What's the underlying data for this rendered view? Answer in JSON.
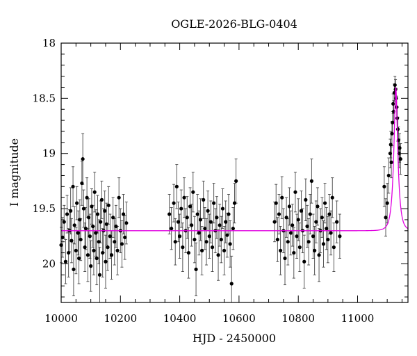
{
  "chart_data": {
    "type": "scatter",
    "title": "OGLE-2026-BLG-0404",
    "xlabel": "HJD - 2450000",
    "ylabel": "I magnitude",
    "xlim": [
      10000,
      11170
    ],
    "ylim": [
      20.35,
      18.0
    ],
    "y_inverted": true,
    "grid": false,
    "legend": "none",
    "x_ticks": [
      10000,
      10200,
      10400,
      10600,
      10800,
      11000
    ],
    "x_tick_labels": [
      "10000",
      "10200",
      "10400",
      "10600",
      "10800",
      "11000"
    ],
    "y_ticks": [
      18,
      18.5,
      19,
      19.5,
      20
    ],
    "y_tick_labels": [
      "18",
      "18.5",
      "19",
      "19.5",
      "20"
    ],
    "colors": {
      "points": "#000000",
      "model": "#e000e0"
    },
    "series": [
      {
        "kind": "points_with_errorbars",
        "points": [
          [
            10000,
            19.83,
            0.16
          ],
          [
            10005,
            19.76,
            0.18
          ],
          [
            10010,
            19.62,
            0.15
          ],
          [
            10015,
            19.98,
            0.2
          ],
          [
            10020,
            19.55,
            0.17
          ],
          [
            10025,
            19.9,
            0.22
          ],
          [
            10028,
            19.7,
            0.19
          ],
          [
            10032,
            19.52,
            0.21
          ],
          [
            10035,
            19.79,
            0.2
          ],
          [
            10040,
            19.3,
            0.18
          ],
          [
            10042,
            20.05,
            0.24
          ],
          [
            10045,
            19.65,
            0.17
          ],
          [
            10050,
            19.88,
            0.21
          ],
          [
            10053,
            19.45,
            0.15
          ],
          [
            10057,
            19.72,
            0.2
          ],
          [
            10060,
            19.95,
            0.23
          ],
          [
            10063,
            19.6,
            0.18
          ],
          [
            10066,
            19.78,
            0.19
          ],
          [
            10070,
            19.27,
            0.2
          ],
          [
            10073,
            19.05,
            0.23
          ],
          [
            10076,
            19.5,
            0.17
          ],
          [
            10080,
            19.85,
            0.22
          ],
          [
            10083,
            19.68,
            0.19
          ],
          [
            10087,
            19.4,
            0.18
          ],
          [
            10090,
            19.92,
            0.24
          ],
          [
            10093,
            19.58,
            0.17
          ],
          [
            10097,
            19.75,
            0.2
          ],
          [
            10100,
            20.02,
            0.23
          ],
          [
            10103,
            19.48,
            0.16
          ],
          [
            10107,
            19.66,
            0.19
          ],
          [
            10110,
            19.88,
            0.22
          ],
          [
            10113,
            19.35,
            0.18
          ],
          [
            10117,
            19.72,
            0.21
          ],
          [
            10120,
            19.95,
            0.24
          ],
          [
            10123,
            19.55,
            0.17
          ],
          [
            10127,
            19.8,
            0.2
          ],
          [
            10130,
            20.1,
            0.25
          ],
          [
            10133,
            19.62,
            0.19
          ],
          [
            10137,
            19.42,
            0.17
          ],
          [
            10140,
            19.9,
            0.22
          ],
          [
            10143,
            19.7,
            0.2
          ],
          [
            10147,
            19.52,
            0.18
          ],
          [
            10150,
            19.98,
            0.24
          ],
          [
            10153,
            19.64,
            0.19
          ],
          [
            10157,
            19.85,
            0.21
          ],
          [
            10160,
            19.47,
            0.17
          ],
          [
            10165,
            19.75,
            0.2
          ],
          [
            10170,
            19.92,
            0.22
          ],
          [
            10175,
            19.58,
            0.18
          ],
          [
            10180,
            19.8,
            0.21
          ],
          [
            10185,
            19.66,
            0.19
          ],
          [
            10190,
            19.88,
            0.22
          ],
          [
            10195,
            19.4,
            0.18
          ],
          [
            10200,
            19.7,
            0.2
          ],
          [
            10205,
            19.82,
            0.21
          ],
          [
            10210,
            19.55,
            0.18
          ],
          [
            10215,
            19.76,
            0.2
          ],
          [
            10220,
            19.63,
            0.19
          ],
          [
            10365,
            19.55,
            0.18
          ],
          [
            10372,
            19.68,
            0.19
          ],
          [
            10380,
            19.45,
            0.17
          ],
          [
            10385,
            19.8,
            0.21
          ],
          [
            10390,
            19.3,
            0.2
          ],
          [
            10395,
            19.62,
            0.18
          ],
          [
            10400,
            19.75,
            0.2
          ],
          [
            10405,
            19.5,
            0.17
          ],
          [
            10410,
            19.85,
            0.22
          ],
          [
            10415,
            19.4,
            0.18
          ],
          [
            10420,
            19.7,
            0.2
          ],
          [
            10425,
            19.58,
            0.19
          ],
          [
            10430,
            19.9,
            0.23
          ],
          [
            10435,
            19.48,
            0.17
          ],
          [
            10440,
            19.65,
            0.19
          ],
          [
            10445,
            19.35,
            0.18
          ],
          [
            10450,
            19.78,
            0.21
          ],
          [
            10455,
            20.05,
            0.24
          ],
          [
            10460,
            19.55,
            0.18
          ],
          [
            10465,
            19.72,
            0.2
          ],
          [
            10470,
            19.6,
            0.19
          ],
          [
            10475,
            19.88,
            0.22
          ],
          [
            10480,
            19.42,
            0.17
          ],
          [
            10485,
            19.68,
            0.19
          ],
          [
            10490,
            19.8,
            0.21
          ],
          [
            10495,
            19.52,
            0.18
          ],
          [
            10500,
            19.75,
            0.2
          ],
          [
            10505,
            19.62,
            0.19
          ],
          [
            10510,
            19.85,
            0.22
          ],
          [
            10515,
            19.45,
            0.18
          ],
          [
            10520,
            19.7,
            0.2
          ],
          [
            10525,
            19.58,
            0.19
          ],
          [
            10530,
            19.92,
            0.23
          ],
          [
            10535,
            19.65,
            0.19
          ],
          [
            10540,
            19.78,
            0.21
          ],
          [
            10545,
            19.5,
            0.18
          ],
          [
            10550,
            19.88,
            0.22
          ],
          [
            10555,
            19.62,
            0.19
          ],
          [
            10560,
            19.74,
            0.2
          ],
          [
            10565,
            19.55,
            0.18
          ],
          [
            10570,
            19.82,
            0.21
          ],
          [
            10575,
            20.18,
            0.25
          ],
          [
            10580,
            19.68,
            0.19
          ],
          [
            10585,
            19.45,
            0.18
          ],
          [
            10590,
            19.25,
            0.2
          ],
          [
            10720,
            19.62,
            0.18
          ],
          [
            10725,
            19.45,
            0.17
          ],
          [
            10730,
            19.78,
            0.2
          ],
          [
            10735,
            19.55,
            0.18
          ],
          [
            10740,
            19.88,
            0.22
          ],
          [
            10745,
            19.4,
            0.19
          ],
          [
            10750,
            19.7,
            0.2
          ],
          [
            10755,
            19.95,
            0.24
          ],
          [
            10760,
            19.58,
            0.18
          ],
          [
            10765,
            19.8,
            0.21
          ],
          [
            10770,
            19.48,
            0.17
          ],
          [
            10775,
            19.72,
            0.2
          ],
          [
            10780,
            19.65,
            0.19
          ],
          [
            10785,
            19.9,
            0.23
          ],
          [
            10790,
            19.35,
            0.18
          ],
          [
            10795,
            19.75,
            0.2
          ],
          [
            10800,
            19.6,
            0.19
          ],
          [
            10805,
            19.85,
            0.22
          ],
          [
            10810,
            19.52,
            0.18
          ],
          [
            10815,
            19.7,
            0.2
          ],
          [
            10820,
            19.98,
            0.24
          ],
          [
            10825,
            19.42,
            0.19
          ],
          [
            10830,
            19.66,
            0.19
          ],
          [
            10835,
            19.8,
            0.21
          ],
          [
            10840,
            19.55,
            0.18
          ],
          [
            10845,
            19.25,
            0.2
          ],
          [
            10850,
            19.75,
            0.2
          ],
          [
            10855,
            19.88,
            0.22
          ],
          [
            10860,
            19.62,
            0.19
          ],
          [
            10865,
            19.48,
            0.17
          ],
          [
            10870,
            19.92,
            0.24
          ],
          [
            10875,
            19.7,
            0.2
          ],
          [
            10880,
            19.58,
            0.18
          ],
          [
            10885,
            19.82,
            0.21
          ],
          [
            10890,
            19.45,
            0.18
          ],
          [
            10895,
            19.68,
            0.19
          ],
          [
            10900,
            19.78,
            0.21
          ],
          [
            10905,
            19.55,
            0.18
          ],
          [
            10910,
            19.72,
            0.2
          ],
          [
            10915,
            19.4,
            0.18
          ],
          [
            10920,
            19.85,
            0.22
          ],
          [
            10930,
            19.62,
            0.19
          ],
          [
            10940,
            19.75,
            0.2
          ],
          [
            11090,
            19.3,
            0.18
          ],
          [
            11095,
            19.58,
            0.17
          ],
          [
            11100,
            19.45,
            0.18
          ],
          [
            11105,
            19.2,
            0.16
          ],
          [
            11110,
            19.0,
            0.13
          ],
          [
            11112,
            18.92,
            0.12
          ],
          [
            11114,
            19.08,
            0.14
          ],
          [
            11116,
            18.82,
            0.11
          ],
          [
            11118,
            18.72,
            0.1
          ],
          [
            11120,
            18.55,
            0.09
          ],
          [
            11122,
            18.62,
            0.1
          ],
          [
            11124,
            18.45,
            0.08
          ],
          [
            11126,
            18.38,
            0.08
          ],
          [
            11128,
            18.42,
            0.09
          ],
          [
            11130,
            18.5,
            0.09
          ],
          [
            11132,
            18.58,
            0.1
          ],
          [
            11134,
            18.68,
            0.1
          ],
          [
            11136,
            18.78,
            0.11
          ],
          [
            11138,
            18.88,
            0.12
          ],
          [
            11140,
            19.0,
            0.13
          ],
          [
            11142,
            18.95,
            0.13
          ],
          [
            11145,
            19.05,
            0.14
          ]
        ]
      },
      {
        "kind": "model_curve",
        "baseline": 19.7,
        "peak_time": 11129,
        "peak_mag": 18.4,
        "timescale": 14
      }
    ]
  }
}
